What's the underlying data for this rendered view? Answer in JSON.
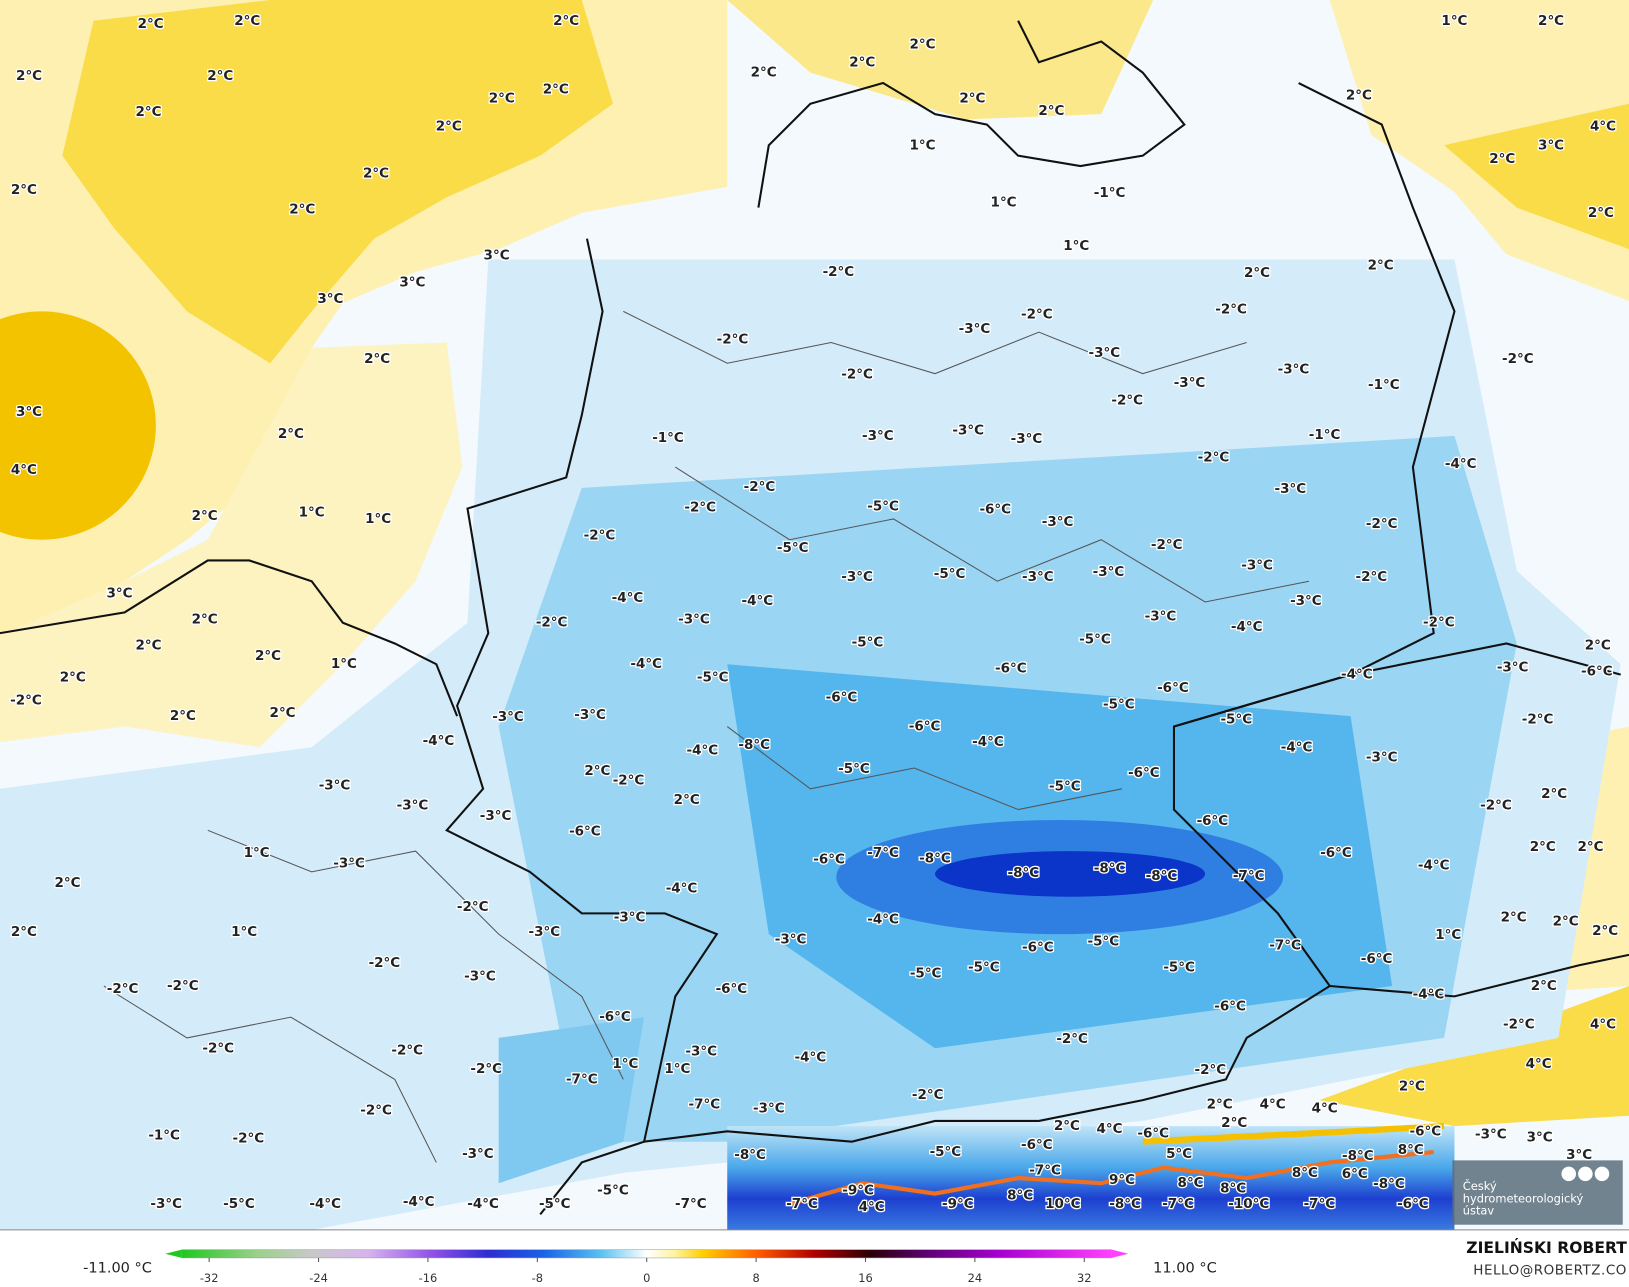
{
  "map": {
    "labels": [
      "2°C",
      "2°C",
      "2°C",
      "2°C",
      "2°C",
      "2°C",
      "2°C",
      "2°C",
      "2°C",
      "2°C",
      "2°C",
      "2°C",
      "2°C",
      "2°C",
      "2°C",
      "2°C",
      "2°C",
      "1°C",
      "2°C",
      "2°C",
      "2°C",
      "3°C",
      "4°C",
      "2°C",
      "1°C",
      "1°C",
      "1°C",
      "-1°C",
      "3°C",
      "3°C",
      "3°C",
      "2°C",
      "3°C",
      "4°C",
      "2°C",
      "2°C",
      "1°C",
      "1°C",
      "3°C",
      "2°C",
      "2°C",
      "2°C",
      "1°C",
      "2°C",
      "-2°C",
      "2°C",
      "2°C",
      "-2°C",
      "-2°C",
      "-2°C",
      "-3°C",
      "-2°C",
      "-3°C",
      "-2°C",
      "-3°C",
      "-2°C",
      "2°C",
      "2°C",
      "-2°C",
      "-1°C",
      "-3°C",
      "-1°C",
      "-2°C",
      "-4°C",
      "-3°C",
      "-2°C",
      "-2°C",
      "-3°C",
      "-2°C",
      "-3°C",
      "-1°C",
      "-2°C",
      "-2°C",
      "-2°C",
      "-3°C",
      "-3°C",
      "-3°C",
      "-5°C",
      "-6°C",
      "-3°C",
      "-5°C",
      "-3°C",
      "-5°C",
      "-3°C",
      "-3°C",
      "-4°C",
      "-4°C",
      "-3°C",
      "-2°C",
      "-3°C",
      "-4°C",
      "-5°C",
      "-4°C",
      "-5°C",
      "-5°C",
      "-6°C",
      "-6°C",
      "-5°C",
      "-6°C",
      "-6°C",
      "-5°C",
      "-4°C",
      "-2°C",
      "-3°C",
      "-6°C",
      "2°C",
      "-3°C",
      "-3°C",
      "-8°C",
      "-4°C",
      "-4°C",
      "-4°C",
      "-4°C",
      "-3°C",
      "-2°C",
      "2°C",
      "-2°C",
      "-5°C",
      "-5°C",
      "-6°C",
      "2°C",
      "-2°C",
      "-3°C",
      "-3°C",
      "-3°C",
      "2°C",
      "-6°C",
      "-6°C",
      "1°C",
      "-3°C",
      "-6°C",
      "-7°C",
      "-8°C",
      "-8°C",
      "-8°C",
      "-8°C",
      "-7°C",
      "-6°C",
      "-4°C",
      "2°C",
      "2°C",
      "2°C",
      "-4°C",
      "-2°C",
      "-3°C",
      "-4°C",
      "2°C",
      "2°C",
      "2°C",
      "1°C",
      "-3°C",
      "-3°C",
      "-6°C",
      "-5°C",
      "-7°C",
      "1°C",
      "2°C",
      "-2°C",
      "-3°C",
      "-2°C",
      "-2°C",
      "-6°C",
      "-5°C",
      "-5°C",
      "-5°C",
      "-6°C",
      "2°C",
      "-4°C",
      "-6°C",
      "-6°C",
      "-2°C",
      "4°C",
      "-2°C",
      "-2°C",
      "-3°C",
      "-4°C",
      "-2°C",
      "-2°C",
      "1°C",
      "1°C",
      "-2°C",
      "4°C",
      "-7°C",
      "-2°C",
      "2°C",
      "-2°C",
      "-7°C",
      "2°C",
      "4°C",
      "2°C",
      "4°C",
      "-6°C",
      "2°C",
      "4°C",
      "-1°C",
      "-2°C",
      "-3°C",
      "-3°C",
      "-8°C",
      "-5°C",
      "-6°C",
      "5°C",
      "8°C",
      "-8°C",
      "8°C",
      "-6°C",
      "-3°C",
      "3°C",
      "3°C",
      "-5°C",
      "-9°C",
      "-7°C",
      "9°C",
      "8°C",
      "8°C",
      "6°C",
      "-8°C",
      "-3°C",
      "-5°C",
      "-4°C",
      "-4°C",
      "-4°C",
      "-5°C",
      "-7°C",
      "-7°C",
      "4°C",
      "-9°C",
      "8°C",
      "10°C",
      "-8°C",
      "-7°C",
      "-10°C",
      "-7°C",
      "-6°C"
    ]
  },
  "colorbar": {
    "min_label": "-11.00 °C",
    "max_label": "11.00 °C",
    "lim": [
      -34,
      34
    ],
    "ticks": [
      -32,
      -24,
      -16,
      -8,
      0,
      8,
      16,
      24,
      32
    ]
  },
  "credits": {
    "author": "ZIELIŃSKI ROBERT",
    "contact": "HELLO@ROBERTZ.CO",
    "logo": [
      "Český",
      "hydrometeorologický",
      "ústav"
    ]
  }
}
